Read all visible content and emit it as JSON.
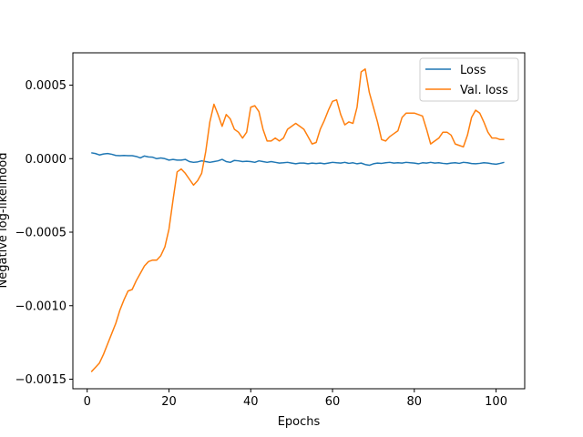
{
  "chart_data": {
    "type": "line",
    "title": "",
    "xlabel": "Epochs",
    "ylabel": "Negative log-likelihood",
    "xlim": [
      -3.5,
      107
    ],
    "ylim": [
      -0.001565,
      0.00072
    ],
    "xticks": [
      0,
      20,
      40,
      60,
      80,
      100
    ],
    "yticks": [
      -0.0015,
      -0.001,
      -0.0005,
      0.0,
      0.0005
    ],
    "xtick_labels": [
      "0",
      "20",
      "40",
      "60",
      "80",
      "100"
    ],
    "ytick_labels": [
      "−0.0015",
      "−0.0010",
      "−0.0005",
      "0.0000",
      "0.0005"
    ],
    "grid": false,
    "legend_position": "top-right",
    "x": [
      1,
      2,
      3,
      4,
      5,
      6,
      7,
      8,
      9,
      10,
      11,
      12,
      13,
      14,
      15,
      16,
      17,
      18,
      19,
      20,
      21,
      22,
      23,
      24,
      25,
      26,
      27,
      28,
      29,
      30,
      31,
      32,
      33,
      34,
      35,
      36,
      37,
      38,
      39,
      40,
      41,
      42,
      43,
      44,
      45,
      46,
      47,
      48,
      49,
      50,
      51,
      52,
      53,
      54,
      55,
      56,
      57,
      58,
      59,
      60,
      61,
      62,
      63,
      64,
      65,
      66,
      67,
      68,
      69,
      70,
      71,
      72,
      73,
      74,
      75,
      76,
      77,
      78,
      79,
      80,
      81,
      82,
      83,
      84,
      85,
      86,
      87,
      88,
      89,
      90,
      91,
      92,
      93,
      94,
      95,
      96,
      97,
      98,
      99,
      100,
      101,
      102
    ],
    "series": [
      {
        "name": "Loss",
        "color": "#1f77b4",
        "values": [
          4e-05,
          3.5e-05,
          2.5e-05,
          3.2e-05,
          3.5e-05,
          3e-05,
          2.2e-05,
          2e-05,
          2.2e-05,
          2e-05,
          2e-05,
          1.5e-05,
          5e-06,
          1.8e-05,
          1.2e-05,
          1e-05,
          0.0,
          5e-06,
          0.0,
          -1e-05,
          -5e-06,
          -1e-05,
          -1e-05,
          -5e-06,
          -2e-05,
          -2.5e-05,
          -2.2e-05,
          -1.5e-05,
          -2e-05,
          -2.5e-05,
          -2e-05,
          -1.5e-05,
          -5e-06,
          -2e-05,
          -2.5e-05,
          -1.2e-05,
          -1.5e-05,
          -2e-05,
          -1.8e-05,
          -2e-05,
          -2.5e-05,
          -1.5e-05,
          -2e-05,
          -2.5e-05,
          -2e-05,
          -2.5e-05,
          -3e-05,
          -2.8e-05,
          -2.5e-05,
          -3e-05,
          -3.5e-05,
          -3e-05,
          -3e-05,
          -3.5e-05,
          -3e-05,
          -3.3e-05,
          -3e-05,
          -3.5e-05,
          -3e-05,
          -2.5e-05,
          -2.8e-05,
          -3e-05,
          -2.5e-05,
          -3.2e-05,
          -2.8e-05,
          -3.5e-05,
          -3e-05,
          -4e-05,
          -4.5e-05,
          -3.5e-05,
          -3e-05,
          -3.2e-05,
          -2.8e-05,
          -2.5e-05,
          -3e-05,
          -2.8e-05,
          -3e-05,
          -2.5e-05,
          -2.8e-05,
          -3e-05,
          -3.5e-05,
          -2.8e-05,
          -3e-05,
          -2.5e-05,
          -3e-05,
          -2.8e-05,
          -3.2e-05,
          -3.5e-05,
          -3e-05,
          -2.8e-05,
          -3.2e-05,
          -2.5e-05,
          -2.8e-05,
          -3.3e-05,
          -3.5e-05,
          -3.2e-05,
          -2.8e-05,
          -3e-05,
          -3.5e-05,
          -3.8e-05,
          -3.2e-05,
          -2.5e-05
        ]
      },
      {
        "name": "Val. loss",
        "color": "#ff7f0e",
        "values": [
          -0.00145,
          -0.00142,
          -0.00139,
          -0.00133,
          -0.00126,
          -0.00119,
          -0.00112,
          -0.00103,
          -0.00096,
          -0.0009,
          -0.00089,
          -0.00083,
          -0.00078,
          -0.00073,
          -0.0007,
          -0.00069,
          -0.00069,
          -0.00066,
          -0.0006,
          -0.00048,
          -0.00028,
          -9e-05,
          -7e-05,
          -0.0001,
          -0.00014,
          -0.00018,
          -0.00015,
          -0.0001,
          5e-05,
          0.00025,
          0.00037,
          0.0003,
          0.00022,
          0.0003,
          0.00027,
          0.0002,
          0.00018,
          0.00014,
          0.00018,
          0.00035,
          0.00036,
          0.00032,
          0.0002,
          0.00012,
          0.00012,
          0.00014,
          0.00012,
          0.00014,
          0.0002,
          0.00022,
          0.00024,
          0.00022,
          0.0002,
          0.00015,
          0.0001,
          0.00011,
          0.0002,
          0.00026,
          0.00033,
          0.00039,
          0.0004,
          0.0003,
          0.00023,
          0.00025,
          0.00024,
          0.00035,
          0.00059,
          0.00061,
          0.00045,
          0.00035,
          0.00025,
          0.00013,
          0.00012,
          0.00015,
          0.00017,
          0.00019,
          0.00028,
          0.00031,
          0.00031,
          0.00031,
          0.0003,
          0.00029,
          0.0002,
          0.0001,
          0.00012,
          0.00014,
          0.00018,
          0.00018,
          0.00016,
          0.0001,
          9e-05,
          8e-05,
          0.00016,
          0.00028,
          0.00033,
          0.00031,
          0.00025,
          0.00018,
          0.00014,
          0.00014,
          0.00013,
          0.00013
        ]
      }
    ]
  }
}
